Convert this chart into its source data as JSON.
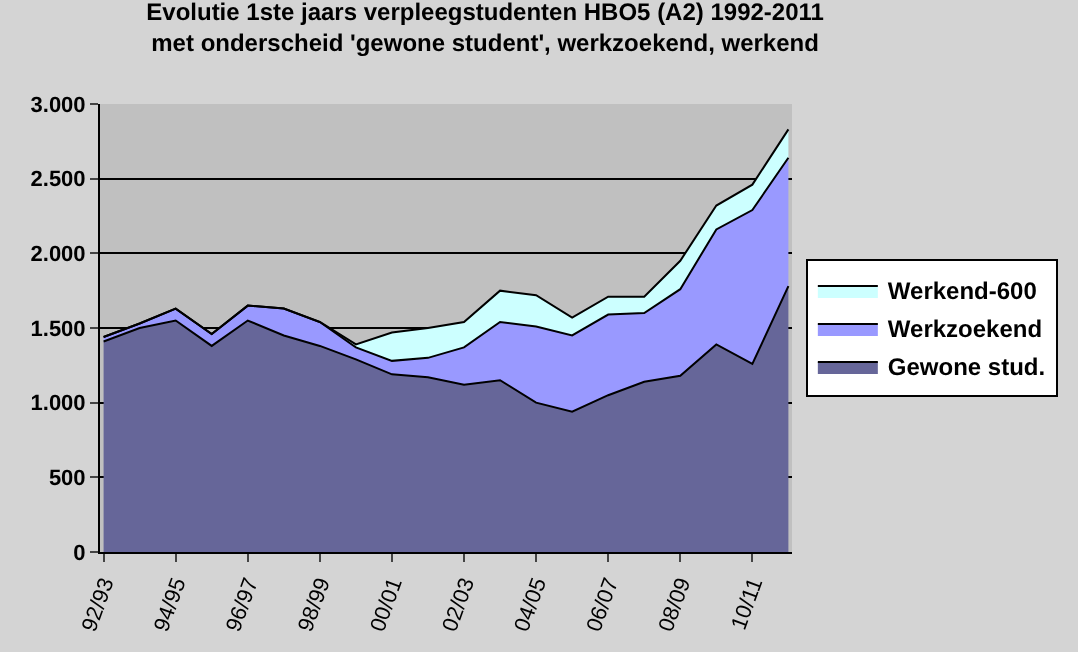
{
  "chart_data": {
    "type": "area",
    "stacked": true,
    "title": "Evolutie 1ste jaars verpleegstudenten HBO5 (A2) 1992-2011\nmet onderscheid 'gewone student', werkzoekend, werkend",
    "categories": [
      "92/93",
      null,
      "94/95",
      null,
      "96/97",
      null,
      "98/99",
      null,
      "00/01",
      null,
      "02/03",
      null,
      "04/05",
      null,
      "06/07",
      null,
      "08/09",
      null,
      "10/11",
      null
    ],
    "series": [
      {
        "name": "Gewone stud.",
        "color": "#666699",
        "values": [
          1410,
          1500,
          1550,
          1380,
          1550,
          1450,
          1380,
          1290,
          1190,
          1170,
          1120,
          1150,
          1000,
          940,
          1050,
          1140,
          1180,
          1390,
          1260,
          1780
        ]
      },
      {
        "name": "Werkzoekend",
        "color": "#9999ff",
        "values": [
          30,
          30,
          80,
          80,
          100,
          180,
          160,
          80,
          90,
          130,
          250,
          390,
          510,
          510,
          540,
          460,
          580,
          770,
          1030,
          860
        ]
      },
      {
        "name": "Werkend-600",
        "color": "#ccffff",
        "values": [
          0,
          0,
          0,
          0,
          0,
          0,
          0,
          20,
          190,
          200,
          170,
          210,
          210,
          120,
          120,
          110,
          190,
          160,
          170,
          190
        ]
      }
    ],
    "ylim": [
      0,
      3000
    ],
    "yticks": [
      0,
      500,
      {
        "value": 1000,
        "label": "1.000"
      },
      {
        "value": 1500,
        "label": "1.500"
      },
      {
        "value": 2000,
        "label": "2.000"
      },
      {
        "value": 2500,
        "label": "2.500"
      },
      {
        "value": 3000,
        "label": "3.000"
      }
    ],
    "grid": "y",
    "legend": "right"
  }
}
